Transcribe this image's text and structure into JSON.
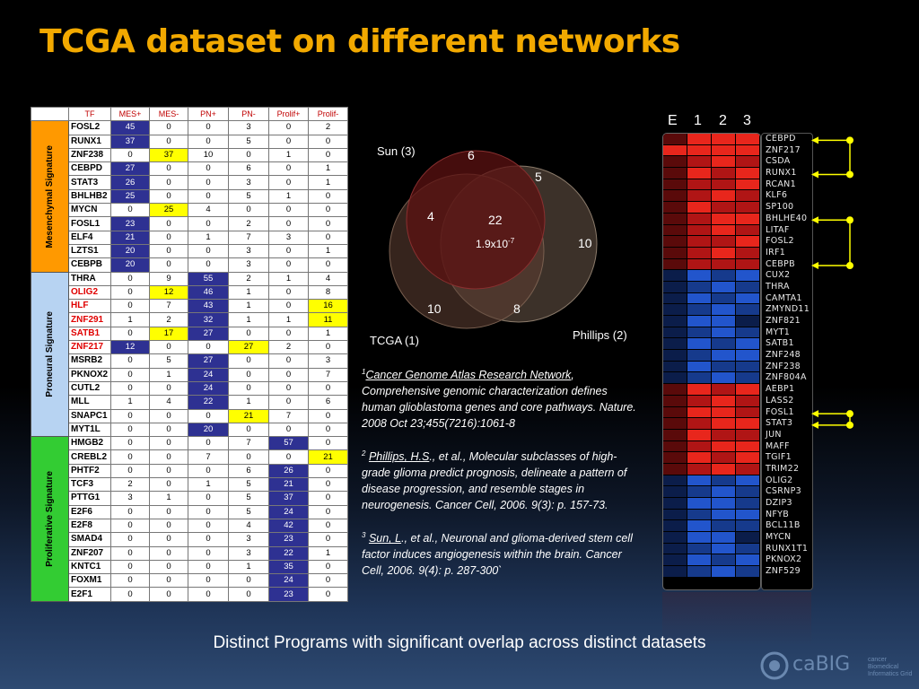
{
  "title": "TCGA dataset on different networks",
  "table": {
    "headers": [
      "TF",
      "MES+",
      "MES-",
      "PN+",
      "PN-",
      "Prolif+",
      "Prolif-"
    ],
    "groups": [
      {
        "label": "Mesenchymal Signature",
        "color": "#ff9900",
        "rows": [
          {
            "gene": "FOSL2",
            "values": [
              "45",
              "0",
              "0",
              "3",
              "0",
              "2"
            ],
            "hl": [
              "b",
              "",
              "",
              "",
              "",
              ""
            ]
          },
          {
            "gene": "RUNX1",
            "values": [
              "37",
              "0",
              "0",
              "5",
              "0",
              "0"
            ],
            "hl": [
              "b",
              "",
              "",
              "",
              "",
              ""
            ]
          },
          {
            "gene": "ZNF238",
            "values": [
              "0",
              "37",
              "10",
              "0",
              "1",
              "0"
            ],
            "hl": [
              "",
              "y",
              "",
              "",
              "",
              ""
            ]
          },
          {
            "gene": "CEBPD",
            "values": [
              "27",
              "0",
              "0",
              "6",
              "0",
              "1"
            ],
            "hl": [
              "b",
              "",
              "",
              "",
              "",
              ""
            ]
          },
          {
            "gene": "STAT3",
            "values": [
              "26",
              "0",
              "0",
              "3",
              "0",
              "1"
            ],
            "hl": [
              "b",
              "",
              "",
              "",
              "",
              ""
            ]
          },
          {
            "gene": "BHLHB2",
            "values": [
              "25",
              "0",
              "0",
              "5",
              "1",
              "0"
            ],
            "hl": [
              "b",
              "",
              "",
              "",
              "",
              ""
            ]
          },
          {
            "gene": "MYCN",
            "values": [
              "0",
              "25",
              "4",
              "0",
              "0",
              "0"
            ],
            "hl": [
              "",
              "y",
              "",
              "",
              "",
              ""
            ]
          },
          {
            "gene": "FOSL1",
            "values": [
              "23",
              "0",
              "0",
              "2",
              "0",
              "0"
            ],
            "hl": [
              "b",
              "",
              "",
              "",
              "",
              ""
            ]
          },
          {
            "gene": "ELF4",
            "values": [
              "21",
              "0",
              "1",
              "7",
              "3",
              "0"
            ],
            "hl": [
              "b",
              "",
              "",
              "",
              "",
              ""
            ]
          },
          {
            "gene": "LZTS1",
            "values": [
              "20",
              "0",
              "0",
              "3",
              "0",
              "1"
            ],
            "hl": [
              "b",
              "",
              "",
              "",
              "",
              ""
            ]
          },
          {
            "gene": "CEBPB",
            "values": [
              "20",
              "0",
              "0",
              "3",
              "0",
              "0"
            ],
            "hl": [
              "b",
              "",
              "",
              "",
              "",
              ""
            ]
          }
        ]
      },
      {
        "label": "Proneural Signature",
        "color": "#b7d3f2",
        "rows": [
          {
            "gene": "THRA",
            "values": [
              "0",
              "9",
              "55",
              "2",
              "1",
              "4"
            ],
            "hl": [
              "",
              "",
              "b",
              "",
              "",
              ""
            ]
          },
          {
            "gene": "OLIG2",
            "red": true,
            "values": [
              "0",
              "12",
              "46",
              "1",
              "0",
              "8"
            ],
            "hl": [
              "",
              "y",
              "b",
              "",
              "",
              ""
            ]
          },
          {
            "gene": "HLF",
            "red": true,
            "values": [
              "0",
              "7",
              "43",
              "1",
              "0",
              "16"
            ],
            "hl": [
              "",
              "",
              "b",
              "",
              "",
              "y"
            ]
          },
          {
            "gene": "ZNF291",
            "red": true,
            "values": [
              "1",
              "2",
              "32",
              "1",
              "1",
              "11"
            ],
            "hl": [
              "",
              "",
              "b",
              "",
              "",
              "y"
            ]
          },
          {
            "gene": "SATB1",
            "red": true,
            "values": [
              "0",
              "17",
              "27",
              "0",
              "0",
              "1"
            ],
            "hl": [
              "",
              "y",
              "b",
              "",
              "",
              ""
            ]
          },
          {
            "gene": "ZNF217",
            "red": true,
            "values": [
              "12",
              "0",
              "0",
              "27",
              "2",
              "0"
            ],
            "hl": [
              "b",
              "",
              "",
              "y",
              "",
              ""
            ]
          },
          {
            "gene": "MSRB2",
            "values": [
              "0",
              "5",
              "27",
              "0",
              "0",
              "3"
            ],
            "hl": [
              "",
              "",
              "b",
              "",
              "",
              ""
            ]
          },
          {
            "gene": "PKNOX2",
            "values": [
              "0",
              "1",
              "24",
              "0",
              "0",
              "7"
            ],
            "hl": [
              "",
              "",
              "b",
              "",
              "",
              ""
            ]
          },
          {
            "gene": "CUTL2",
            "values": [
              "0",
              "0",
              "24",
              "0",
              "0",
              "0"
            ],
            "hl": [
              "",
              "",
              "b",
              "",
              "",
              ""
            ]
          },
          {
            "gene": "MLL",
            "values": [
              "1",
              "4",
              "22",
              "1",
              "0",
              "6"
            ],
            "hl": [
              "",
              "",
              "b",
              "",
              "",
              ""
            ]
          },
          {
            "gene": "SNAPC1",
            "values": [
              "0",
              "0",
              "0",
              "21",
              "7",
              "0"
            ],
            "hl": [
              "",
              "",
              "",
              "y",
              "",
              ""
            ]
          },
          {
            "gene": "MYT1L",
            "values": [
              "0",
              "0",
              "20",
              "0",
              "0",
              "0"
            ],
            "hl": [
              "",
              "",
              "b",
              "",
              "",
              ""
            ]
          }
        ]
      },
      {
        "label": "Proliferative Signature",
        "color": "#33cc33",
        "rows": [
          {
            "gene": "HMGB2",
            "values": [
              "0",
              "0",
              "0",
              "7",
              "57",
              "0"
            ],
            "hl": [
              "",
              "",
              "",
              "",
              "b",
              ""
            ]
          },
          {
            "gene": "CREBL2",
            "values": [
              "0",
              "0",
              "7",
              "0",
              "0",
              "21"
            ],
            "hl": [
              "",
              "",
              "",
              "",
              "",
              "y"
            ]
          },
          {
            "gene": "PHTF2",
            "values": [
              "0",
              "0",
              "0",
              "6",
              "26",
              "0"
            ],
            "hl": [
              "",
              "",
              "",
              "",
              "b",
              ""
            ]
          },
          {
            "gene": "TCF3",
            "values": [
              "2",
              "0",
              "1",
              "5",
              "21",
              "0"
            ],
            "hl": [
              "",
              "",
              "",
              "",
              "b",
              ""
            ]
          },
          {
            "gene": "PTTG1",
            "values": [
              "3",
              "1",
              "0",
              "5",
              "37",
              "0"
            ],
            "hl": [
              "",
              "",
              "",
              "",
              "b",
              ""
            ]
          },
          {
            "gene": "E2F6",
            "values": [
              "0",
              "0",
              "0",
              "5",
              "24",
              "0"
            ],
            "hl": [
              "",
              "",
              "",
              "",
              "b",
              ""
            ]
          },
          {
            "gene": "E2F8",
            "values": [
              "0",
              "0",
              "0",
              "4",
              "42",
              "0"
            ],
            "hl": [
              "",
              "",
              "",
              "",
              "b",
              ""
            ]
          },
          {
            "gene": "SMAD4",
            "values": [
              "0",
              "0",
              "0",
              "3",
              "23",
              "0"
            ],
            "hl": [
              "",
              "",
              "",
              "",
              "b",
              ""
            ]
          },
          {
            "gene": "ZNF207",
            "values": [
              "0",
              "0",
              "0",
              "3",
              "22",
              "1"
            ],
            "hl": [
              "",
              "",
              "",
              "",
              "b",
              ""
            ]
          },
          {
            "gene": "KNTC1",
            "values": [
              "0",
              "0",
              "0",
              "1",
              "35",
              "0"
            ],
            "hl": [
              "",
              "",
              "",
              "",
              "b",
              ""
            ]
          },
          {
            "gene": "FOXM1",
            "values": [
              "0",
              "0",
              "0",
              "0",
              "24",
              "0"
            ],
            "hl": [
              "",
              "",
              "",
              "",
              "b",
              ""
            ]
          },
          {
            "gene": "E2F1",
            "values": [
              "0",
              "0",
              "0",
              "0",
              "23",
              "0"
            ],
            "hl": [
              "",
              "",
              "",
              "",
              "b",
              ""
            ]
          }
        ]
      }
    ]
  },
  "venn": {
    "sets": [
      "Sun (3)",
      "Phillips (2)",
      "TCGA (1)"
    ],
    "regions": {
      "sun_only": "6",
      "sun_phillips": "5",
      "sun_tcga": "4",
      "all": "22",
      "pvalue": "1.9x10",
      "pvalue_exp": "-7",
      "phillips_only": "10",
      "tcga_only": "10",
      "tcga_phillips": "8"
    }
  },
  "references": [
    {
      "num": "1",
      "author": "Cancer Genome Atlas Research Network",
      "rest": ", Comprehensive genomic characterization defines human glioblastoma genes and core pathways. Nature. 2008 Oct 23;455(7216):1061-8"
    },
    {
      "num": "2",
      "author": "Phillips, H.S",
      "rest": "., et al., Molecular subclasses of high-grade glioma predict prognosis, delineate a pattern of disease progression, and resemble stages in neurogenesis. Cancer Cell, 2006. 9(3): p. 157-73."
    },
    {
      "num": "3",
      "author": "Sun, L",
      "rest": "., et al., Neuronal and glioma-derived stem cell factor induces angiogenesis within the brain. Cancer Cell, 2006. 9(4): p. 287-300`"
    }
  ],
  "heatmap": {
    "columns": [
      "E",
      "1",
      "2",
      "3"
    ],
    "genes": [
      "CEBPD",
      "ZNF217",
      "CSDA",
      "RUNX1",
      "RCAN1",
      "KLF6",
      "SP100",
      "BHLHE40",
      "LITAF",
      "FOSL2",
      "IRF1",
      "CEBPB",
      "CUX2",
      "THRA",
      "CAMTA1",
      "ZMYND11",
      "ZNF821",
      "MYT1",
      "SATB1",
      "ZNF248",
      "ZNF238",
      "ZNF804A",
      "AEBP1",
      "LASS2",
      "FOSL1",
      "STAT3",
      "JUN",
      "MAFF",
      "TGIF1",
      "TRIM22",
      "OLIG2",
      "CSRNP3",
      "DZIP3",
      "NFYB",
      "BCL11B",
      "MYCN",
      "RUNX1T1",
      "PKNOX2",
      "ZNF529"
    ],
    "colors": {
      "red_strong": "#e8261c",
      "red_mid": "#b01515",
      "red_dark": "#5a0a0a",
      "blue_strong": "#2255cc",
      "blue_mid": "#163a8c",
      "blue_dark": "#0b1d4a"
    },
    "cells": [
      [
        "rd",
        "rs",
        "rs",
        "rs"
      ],
      [
        "rs",
        "rs",
        "rs",
        "rs"
      ],
      [
        "rd",
        "rm",
        "rs",
        "rm"
      ],
      [
        "rd",
        "rs",
        "rm",
        "rs"
      ],
      [
        "rd",
        "rm",
        "rm",
        "rs"
      ],
      [
        "rd",
        "rm",
        "rs",
        "rm"
      ],
      [
        "rd",
        "rs",
        "rm",
        "rm"
      ],
      [
        "rd",
        "rm",
        "rs",
        "rs"
      ],
      [
        "rd",
        "rm",
        "rs",
        "rm"
      ],
      [
        "rd",
        "rm",
        "rm",
        "rs"
      ],
      [
        "rd",
        "rm",
        "rs",
        "rm"
      ],
      [
        "rd",
        "rm",
        "rm",
        "rm"
      ],
      [
        "bd",
        "bs",
        "bm",
        "bs"
      ],
      [
        "bd",
        "bm",
        "bs",
        "bm"
      ],
      [
        "bd",
        "bs",
        "bm",
        "bs"
      ],
      [
        "bd",
        "bm",
        "bs",
        "bm"
      ],
      [
        "bd",
        "bs",
        "bs",
        "bd"
      ],
      [
        "bd",
        "bm",
        "bs",
        "bm"
      ],
      [
        "bd",
        "bs",
        "bm",
        "bs"
      ],
      [
        "bd",
        "bm",
        "bs",
        "bs"
      ],
      [
        "bd",
        "bs",
        "bm",
        "bm"
      ],
      [
        "bd",
        "bm",
        "bs",
        "bm"
      ],
      [
        "rd",
        "rs",
        "rm",
        "rs"
      ],
      [
        "rd",
        "rm",
        "rs",
        "rm"
      ],
      [
        "rd",
        "rs",
        "rs",
        "rm"
      ],
      [
        "rd",
        "rm",
        "rs",
        "rs"
      ],
      [
        "rd",
        "rs",
        "rm",
        "rm"
      ],
      [
        "rd",
        "rm",
        "rs",
        "rs"
      ],
      [
        "rd",
        "rs",
        "rm",
        "rs"
      ],
      [
        "rd",
        "rm",
        "rs",
        "rm"
      ],
      [
        "bd",
        "bs",
        "bm",
        "bs"
      ],
      [
        "bd",
        "bm",
        "bs",
        "bm"
      ],
      [
        "bd",
        "bs",
        "bs",
        "bm"
      ],
      [
        "bd",
        "bm",
        "bs",
        "bs"
      ],
      [
        "bd",
        "bs",
        "bm",
        "bm"
      ],
      [
        "bd",
        "bs",
        "bs",
        "bd"
      ],
      [
        "bd",
        "bm",
        "bs",
        "bm"
      ],
      [
        "bd",
        "bs",
        "bm",
        "bs"
      ],
      [
        "bd",
        "bm",
        "bs",
        "bm"
      ]
    ],
    "link_color": "#ffff00"
  },
  "subtitle": "Distinct Programs with significant overlap across distinct datasets",
  "logo": {
    "text": "caBIG",
    "tagline": "cancer Biomedical Informatics Grid"
  }
}
